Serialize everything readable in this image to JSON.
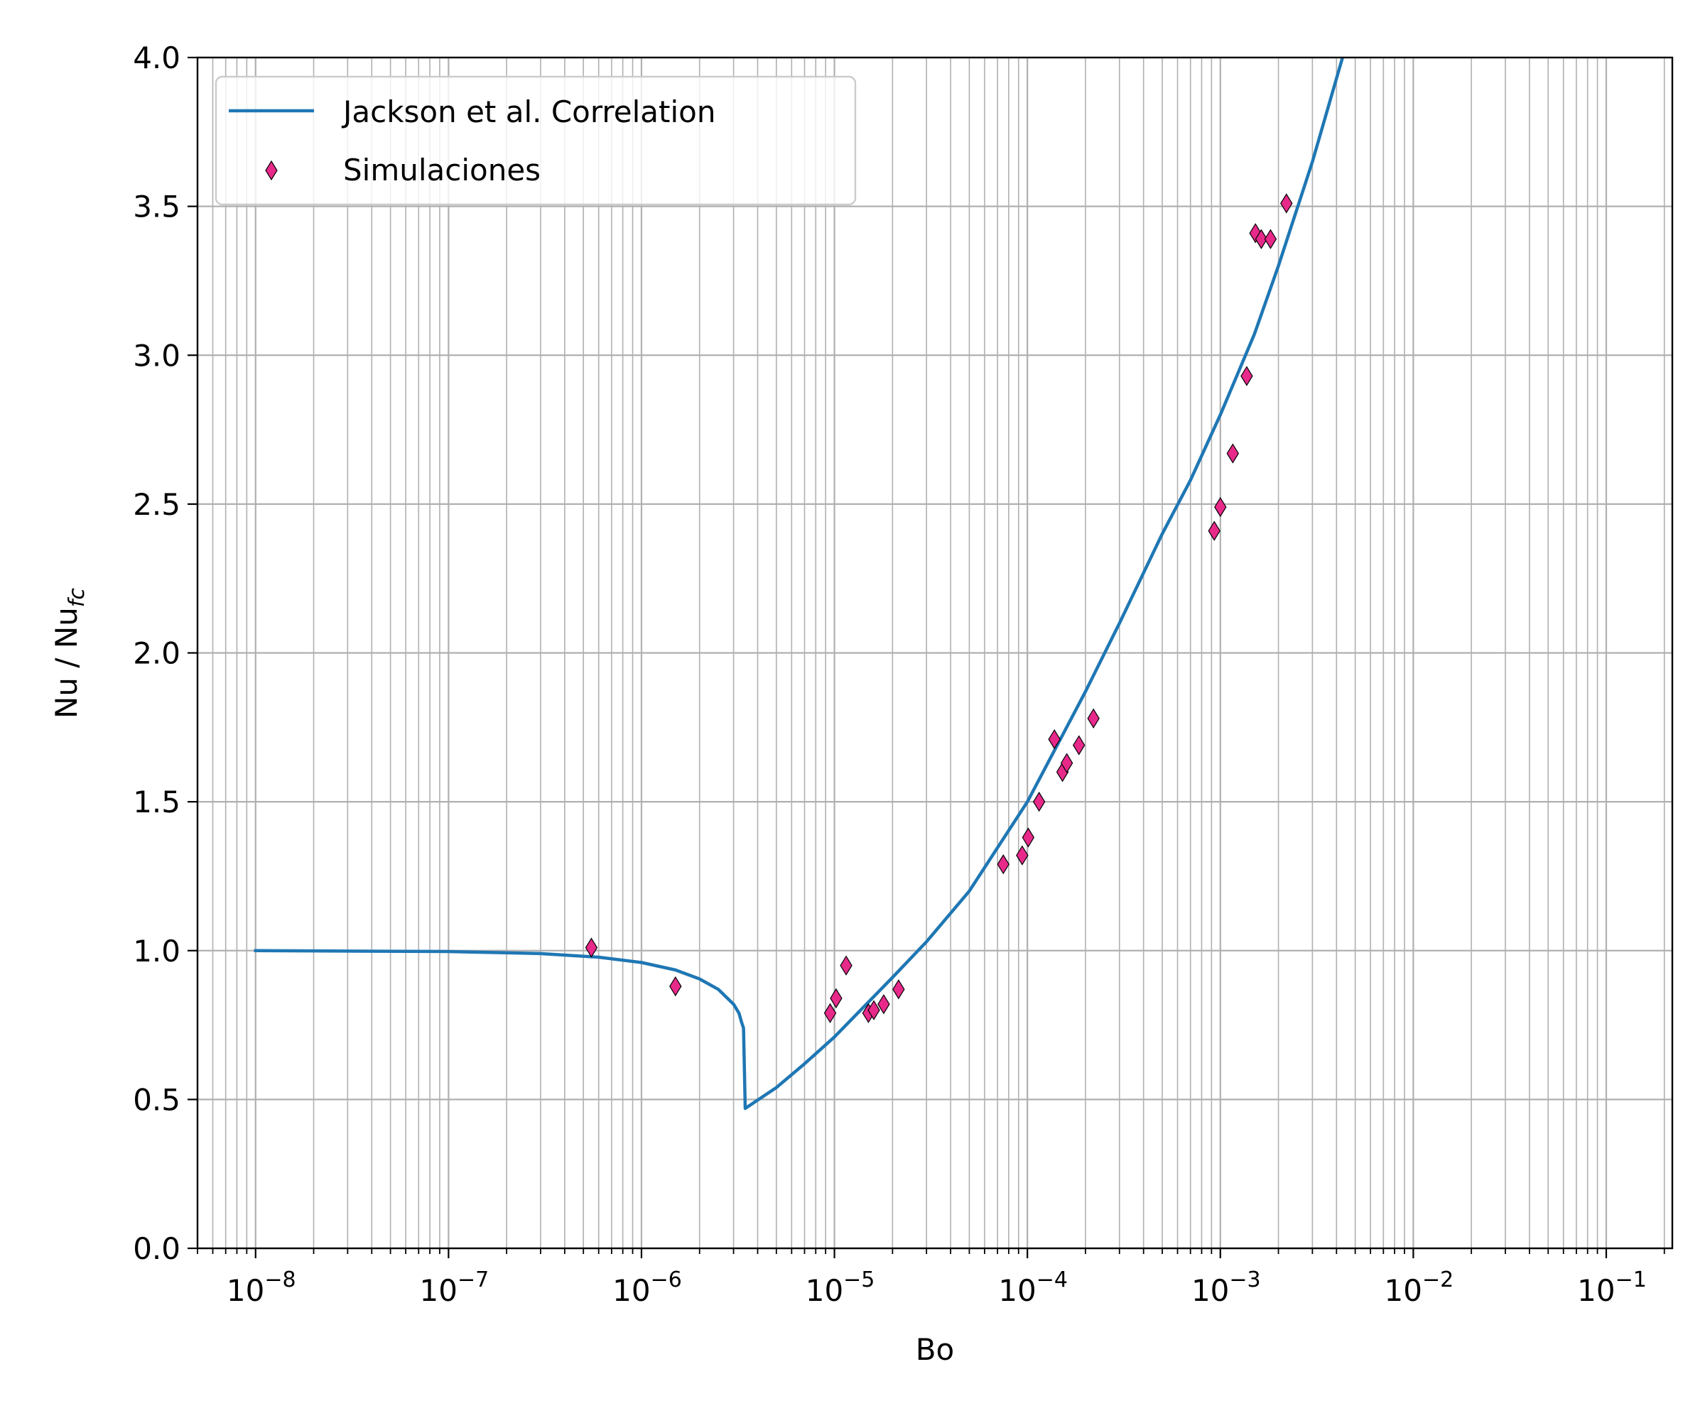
{
  "chart_data": {
    "type": "line",
    "title": "",
    "xlabel": "Bo",
    "ylabel": {
      "base": "Nu / Nu",
      "subscript": "fc"
    },
    "x_scale": "log",
    "xlim": [
      5e-09,
      0.22
    ],
    "ylim": [
      0.0,
      4.0
    ],
    "grid": true,
    "grid_minor_x": true,
    "legend_position": "top-left",
    "x_ticks": [
      {
        "value": 1e-08,
        "mantissa": "10",
        "exponent": "−8"
      },
      {
        "value": 1e-07,
        "mantissa": "10",
        "exponent": "−7"
      },
      {
        "value": 1e-06,
        "mantissa": "10",
        "exponent": "−6"
      },
      {
        "value": 1e-05,
        "mantissa": "10",
        "exponent": "−5"
      },
      {
        "value": 0.0001,
        "mantissa": "10",
        "exponent": "−4"
      },
      {
        "value": 0.001,
        "mantissa": "10",
        "exponent": "−3"
      },
      {
        "value": 0.01,
        "mantissa": "10",
        "exponent": "−2"
      },
      {
        "value": 0.1,
        "mantissa": "10",
        "exponent": "−1"
      }
    ],
    "y_ticks": [
      {
        "value": 0.0,
        "label": "0.0"
      },
      {
        "value": 0.5,
        "label": "0.5"
      },
      {
        "value": 1.0,
        "label": "1.0"
      },
      {
        "value": 1.5,
        "label": "1.5"
      },
      {
        "value": 2.0,
        "label": "2.0"
      },
      {
        "value": 2.5,
        "label": "2.5"
      },
      {
        "value": 3.0,
        "label": "3.0"
      },
      {
        "value": 3.5,
        "label": "3.5"
      },
      {
        "value": 4.0,
        "label": "4.0"
      }
    ],
    "series": [
      {
        "name": "Jackson et al. Correlation",
        "kind": "line",
        "color": "#1f77b4",
        "x": [
          1e-08,
          1e-07,
          3e-07,
          6e-07,
          1e-06,
          1.5e-06,
          2e-06,
          2.5e-06,
          3e-06,
          3.2e-06,
          3.3e-06,
          3.38e-06,
          3.45e-06,
          5e-06,
          7e-06,
          1e-05,
          2e-05,
          3e-05,
          5e-05,
          0.0001,
          0.0002,
          0.0003,
          0.0005,
          0.0007,
          0.001,
          0.0015,
          0.002,
          0.003,
          0.0043
        ],
        "y": [
          1.0,
          0.997,
          0.99,
          0.978,
          0.96,
          0.935,
          0.905,
          0.87,
          0.82,
          0.79,
          0.76,
          0.74,
          0.47,
          0.54,
          0.62,
          0.71,
          0.91,
          1.03,
          1.2,
          1.5,
          1.87,
          2.1,
          2.4,
          2.58,
          2.8,
          3.07,
          3.3,
          3.65,
          4.0
        ]
      },
      {
        "name": "Simulaciones",
        "kind": "scatter",
        "marker": "thin_diamond",
        "color": "#e7298a",
        "edge_color": "#000000",
        "x": [
          5.5e-07,
          1.5e-06,
          9.5e-06,
          1.02e-05,
          1.15e-05,
          1.5e-05,
          1.6e-05,
          1.8e-05,
          2.15e-05,
          7.5e-05,
          9.4e-05,
          0.000101,
          0.000115,
          0.000138,
          0.000152,
          0.00016,
          0.000185,
          0.00022,
          0.00093,
          0.001,
          0.00116,
          0.00137,
          0.00152,
          0.00163,
          0.00182,
          0.0022
        ],
        "y": [
          1.01,
          0.88,
          0.79,
          0.84,
          0.95,
          0.79,
          0.8,
          0.82,
          0.87,
          1.29,
          1.32,
          1.38,
          1.5,
          1.71,
          1.6,
          1.63,
          1.69,
          1.78,
          2.41,
          2.49,
          2.67,
          2.93,
          3.41,
          3.39,
          3.39,
          3.51
        ]
      }
    ]
  }
}
